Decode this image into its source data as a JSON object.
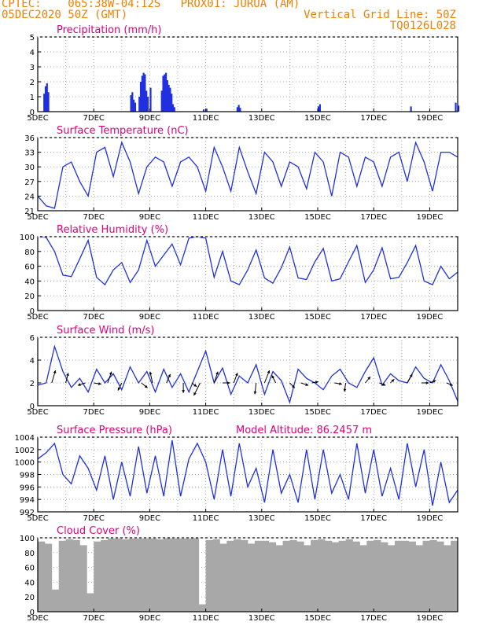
{
  "header": {
    "line1": "CPTEC:    065:38W-04:12S   PROX01: JURUA (AM)",
    "line2": "05DEC2020 50Z (GMT)",
    "grid_note": "Vertical Grid Line: 50Z",
    "code": "TQ0126L028"
  },
  "colors": {
    "header": "#f08000",
    "title": "#e0007a",
    "series": "#2030e0",
    "cloud": "#a8a8a8",
    "grid": "#aaaaaa"
  },
  "x_axis": {
    "range_days": [
      0,
      15
    ],
    "tick_labels": [
      "5DEC",
      "7DEC",
      "9DEC",
      "11DEC",
      "13DEC",
      "15DEC",
      "17DEC",
      "19DEC"
    ],
    "tick_days": [
      0,
      2,
      4,
      6,
      8,
      10,
      12,
      14
    ]
  },
  "chart_data": [
    {
      "id": "precip",
      "type": "bar",
      "title": "Precipitation (mm/h)",
      "ylim": [
        0,
        5
      ],
      "yticks": [
        0,
        1,
        2,
        3,
        4,
        5
      ],
      "x_days": [
        0.2,
        0.25,
        0.3,
        0.35,
        3.3,
        3.35,
        3.4,
        3.45,
        3.6,
        3.65,
        3.7,
        3.75,
        3.8,
        3.85,
        3.9,
        4.0,
        4.4,
        4.45,
        4.5,
        4.55,
        4.6,
        4.65,
        4.7,
        4.75,
        4.8,
        4.85,
        5.9,
        6.0,
        7.1,
        7.15,
        7.2,
        10.0,
        10.05,
        13.3,
        14.9,
        15.0
      ],
      "values": [
        1.2,
        1.7,
        1.9,
        1.3,
        1.1,
        1.3,
        0.8,
        0.6,
        1.0,
        2.0,
        2.4,
        2.6,
        2.5,
        1.4,
        1.0,
        1.6,
        1.4,
        2.4,
        2.5,
        2.6,
        2.1,
        1.8,
        1.6,
        1.2,
        0.5,
        0.3,
        0.15,
        0.2,
        0.3,
        0.45,
        0.25,
        0.35,
        0.5,
        0.35,
        0.6,
        0.4
      ]
    },
    {
      "id": "temp",
      "type": "line",
      "title": "Surface Temperature (nC)",
      "ylim": [
        21,
        36
      ],
      "yticks": [
        21,
        24,
        27,
        30,
        33,
        36
      ],
      "x_days": [
        0,
        0.3,
        0.6,
        0.9,
        1.2,
        1.5,
        1.8,
        2.1,
        2.4,
        2.7,
        3.0,
        3.3,
        3.6,
        3.9,
        4.2,
        4.5,
        4.8,
        5.1,
        5.4,
        5.7,
        6.0,
        6.3,
        6.6,
        6.9,
        7.2,
        7.5,
        7.8,
        8.1,
        8.4,
        8.7,
        9.0,
        9.3,
        9.6,
        9.9,
        10.2,
        10.5,
        10.8,
        11.1,
        11.4,
        11.7,
        12.0,
        12.3,
        12.6,
        12.9,
        13.2,
        13.5,
        13.8,
        14.1,
        14.4,
        14.7,
        15.0
      ],
      "values": [
        24,
        22,
        21.5,
        30,
        31,
        27,
        24,
        33,
        34,
        28,
        35,
        31,
        24.5,
        30,
        32,
        31,
        26,
        31,
        32,
        30,
        25,
        34,
        30,
        25,
        34,
        29,
        24.5,
        33,
        31,
        26,
        31,
        30,
        25.5,
        33,
        31,
        24,
        33,
        32,
        26,
        32,
        31,
        26,
        32,
        33,
        27,
        35,
        31,
        25,
        33,
        33,
        32
      ]
    },
    {
      "id": "rh",
      "type": "line",
      "title": "Relative Humidity (%)",
      "ylim": [
        0,
        100
      ],
      "yticks": [
        0,
        20,
        40,
        60,
        80,
        100
      ],
      "x_days": [
        0,
        0.3,
        0.6,
        0.9,
        1.2,
        1.5,
        1.8,
        2.1,
        2.4,
        2.7,
        3.0,
        3.3,
        3.6,
        3.9,
        4.2,
        4.5,
        4.8,
        5.1,
        5.4,
        5.7,
        6.0,
        6.3,
        6.6,
        6.9,
        7.2,
        7.5,
        7.8,
        8.1,
        8.4,
        8.7,
        9.0,
        9.3,
        9.6,
        9.9,
        10.2,
        10.5,
        10.8,
        11.1,
        11.4,
        11.7,
        12.0,
        12.3,
        12.6,
        12.9,
        13.2,
        13.5,
        13.8,
        14.1,
        14.4,
        14.7,
        15.0
      ],
      "values": [
        100,
        99,
        80,
        48,
        46,
        70,
        95,
        45,
        35,
        55,
        65,
        38,
        55,
        95,
        60,
        75,
        90,
        62,
        98,
        100,
        98,
        45,
        80,
        40,
        35,
        55,
        82,
        44,
        37,
        58,
        86,
        44,
        42,
        66,
        84,
        40,
        43,
        66,
        88,
        38,
        55,
        85,
        43,
        45,
        65,
        88,
        40,
        35,
        60,
        43,
        52
      ]
    },
    {
      "id": "wind",
      "type": "line",
      "title": "Surface Wind (m/s)",
      "ylim": [
        0,
        6
      ],
      "yticks": [
        0,
        2,
        4,
        6
      ],
      "x_days": [
        0,
        0.3,
        0.6,
        0.9,
        1.2,
        1.5,
        1.8,
        2.1,
        2.4,
        2.7,
        3.0,
        3.3,
        3.6,
        3.9,
        4.2,
        4.5,
        4.8,
        5.1,
        5.4,
        5.7,
        6.0,
        6.3,
        6.6,
        6.9,
        7.2,
        7.5,
        7.8,
        8.1,
        8.4,
        8.7,
        9.0,
        9.3,
        9.6,
        9.9,
        10.2,
        10.5,
        10.8,
        11.1,
        11.4,
        11.7,
        12.0,
        12.3,
        12.6,
        12.9,
        13.2,
        13.5,
        13.8,
        14.1,
        14.4,
        14.7,
        15.0
      ],
      "values": [
        1.8,
        2.0,
        5.2,
        3.0,
        1.6,
        2.4,
        1.2,
        3.2,
        2.0,
        2.8,
        1.4,
        3.4,
        2.0,
        3.0,
        1.2,
        3.2,
        1.6,
        2.8,
        1.2,
        3.0,
        4.8,
        2.0,
        3.3,
        1.0,
        2.6,
        2.0,
        3.6,
        1.0,
        3.0,
        2.2,
        0.3,
        3.2,
        2.4,
        2.0,
        1.4,
        2.6,
        3.2,
        2.0,
        1.6,
        3.0,
        4.2,
        1.8,
        2.8,
        2.2,
        2.0,
        3.4,
        2.4,
        2.0,
        3.6,
        2.2,
        0.4
      ],
      "arrows": [
        {
          "day": 0.5,
          "u": 0.3,
          "v": 1.0
        },
        {
          "day": 1.0,
          "u": 0.2,
          "v": 0.8
        },
        {
          "day": 1.7,
          "u": -0.6,
          "v": -0.2
        },
        {
          "day": 2.0,
          "u": 0.6,
          "v": -0.1
        },
        {
          "day": 2.5,
          "u": 0.3,
          "v": 0.9
        },
        {
          "day": 3.0,
          "u": -0.3,
          "v": -0.6
        },
        {
          "day": 3.7,
          "u": 0.5,
          "v": -0.4
        },
        {
          "day": 4.1,
          "u": -0.2,
          "v": 0.9
        },
        {
          "day": 4.6,
          "u": 0.3,
          "v": 0.7
        },
        {
          "day": 5.2,
          "u": 0.0,
          "v": -0.8
        },
        {
          "day": 5.5,
          "u": 0.4,
          "v": -0.3
        },
        {
          "day": 5.8,
          "u": -0.5,
          "v": -1.0
        },
        {
          "day": 6.3,
          "u": 0.3,
          "v": 0.9
        },
        {
          "day": 6.6,
          "u": 0.6,
          "v": 0.0
        },
        {
          "day": 7.0,
          "u": 0.3,
          "v": 0.8
        },
        {
          "day": 7.8,
          "u": -0.1,
          "v": -0.9
        },
        {
          "day": 8.1,
          "u": 0.4,
          "v": 1.0
        },
        {
          "day": 8.5,
          "u": -0.3,
          "v": 0.6
        },
        {
          "day": 9.0,
          "u": 0.4,
          "v": -0.4
        },
        {
          "day": 9.4,
          "u": 0.6,
          "v": -0.2
        },
        {
          "day": 9.8,
          "u": 0.5,
          "v": 0.1
        },
        {
          "day": 10.6,
          "u": 0.6,
          "v": -0.1
        },
        {
          "day": 11.0,
          "u": -0.1,
          "v": -0.7
        },
        {
          "day": 11.7,
          "u": 0.4,
          "v": 0.5
        },
        {
          "day": 12.2,
          "u": 0.5,
          "v": -0.2
        },
        {
          "day": 12.6,
          "u": 0.3,
          "v": 0.3
        },
        {
          "day": 13.2,
          "u": 0.4,
          "v": 0.7
        },
        {
          "day": 13.7,
          "u": 0.6,
          "v": 0.0
        },
        {
          "day": 14.0,
          "u": 0.5,
          "v": 0.2
        },
        {
          "day": 14.6,
          "u": 0.5,
          "v": -0.2
        }
      ]
    },
    {
      "id": "press",
      "type": "line",
      "title": "Surface Pressure (hPa)",
      "extra": "Model Altitude: 86.2457 m",
      "ylim": [
        992,
        1004
      ],
      "yticks": [
        992,
        994,
        996,
        998,
        1000,
        1002,
        1004
      ],
      "x_days": [
        0,
        0.3,
        0.6,
        0.9,
        1.2,
        1.5,
        1.8,
        2.1,
        2.4,
        2.7,
        3.0,
        3.3,
        3.6,
        3.9,
        4.2,
        4.5,
        4.8,
        5.1,
        5.4,
        5.7,
        6.0,
        6.3,
        6.6,
        6.9,
        7.2,
        7.5,
        7.8,
        8.1,
        8.4,
        8.7,
        9.0,
        9.3,
        9.6,
        9.9,
        10.2,
        10.5,
        10.8,
        11.1,
        11.4,
        11.7,
        12.0,
        12.3,
        12.6,
        12.9,
        13.2,
        13.5,
        13.8,
        14.1,
        14.4,
        14.7,
        15.0
      ],
      "values": [
        1000.5,
        1001.5,
        1003,
        998,
        996.5,
        1001,
        999,
        995.5,
        1001,
        994,
        1000,
        994.5,
        1002.5,
        995,
        1001,
        994.5,
        1003.5,
        994.5,
        1000.5,
        1003,
        1000,
        994,
        1002,
        994.5,
        1003,
        996,
        999,
        993.5,
        1002,
        995,
        998,
        993.5,
        1002,
        994,
        1002,
        995,
        998,
        994,
        1003,
        995,
        1002,
        994.5,
        999,
        994,
        1003,
        996,
        1002,
        993,
        1000,
        993.5,
        995.5
      ]
    },
    {
      "id": "cloud",
      "type": "bar",
      "title": "Cloud Cover (%)",
      "ylim": [
        0,
        100
      ],
      "yticks": [
        0,
        20,
        40,
        60,
        80,
        100
      ],
      "x_days": [
        0,
        0.25,
        0.5,
        0.75,
        1,
        1.25,
        1.5,
        1.75,
        2,
        2.25,
        2.5,
        2.75,
        3,
        3.25,
        3.5,
        3.75,
        4,
        4.25,
        4.5,
        4.75,
        5,
        5.25,
        5.5,
        5.75,
        6,
        6.25,
        6.5,
        6.75,
        7,
        7.25,
        7.5,
        7.75,
        8,
        8.25,
        8.5,
        8.75,
        9,
        9.25,
        9.5,
        9.75,
        10,
        10.25,
        10.5,
        10.75,
        11,
        11.25,
        11.5,
        11.75,
        12,
        12.25,
        12.5,
        12.75,
        13,
        13.25,
        13.5,
        13.75,
        14,
        14.25,
        14.5,
        14.75
      ],
      "values": [
        95,
        92,
        30,
        96,
        98,
        97,
        90,
        25,
        95,
        97,
        99,
        99,
        98,
        99,
        99,
        99,
        99,
        98,
        100,
        99,
        99,
        99,
        100,
        10,
        97,
        98,
        92,
        96,
        98,
        97,
        92,
        96,
        96,
        94,
        90,
        96,
        97,
        95,
        90,
        97,
        98,
        96,
        94,
        96,
        98,
        95,
        90,
        96,
        97,
        94,
        90,
        96,
        96,
        95,
        90,
        96,
        97,
        95,
        90,
        96
      ]
    }
  ]
}
